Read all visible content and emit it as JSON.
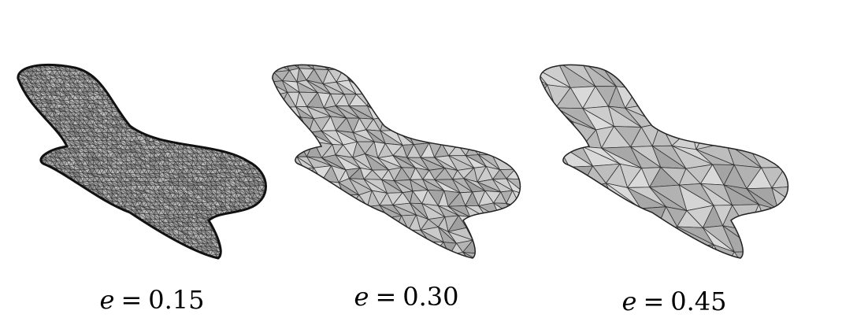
{
  "figure": {
    "panels": [
      {
        "variable": "e",
        "operator": "=",
        "value": "0.15"
      },
      {
        "variable": "e",
        "operator": "=",
        "value": "0.30"
      },
      {
        "variable": "e",
        "operator": "=",
        "value": "0.45"
      }
    ]
  }
}
